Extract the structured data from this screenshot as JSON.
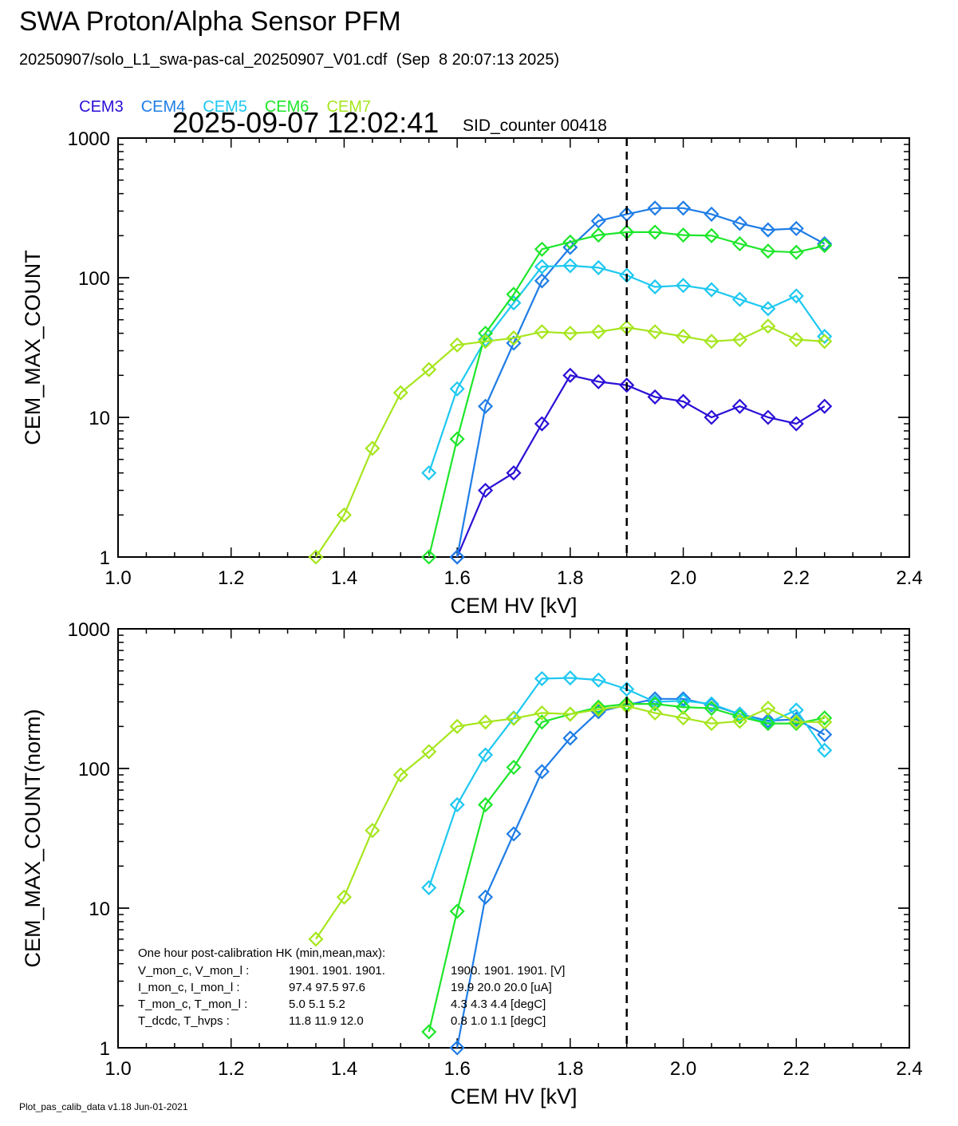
{
  "header": {
    "title": "SWA Proton/Alpha Sensor PFM",
    "file_line": "20250907/solo_L1_swa-pas-cal_20250907_V01.cdf  (Sep  8 20:07:13 2025)",
    "timestamp": "2025-09-07 12:02:41",
    "sid_counter": "SID_counter 00418"
  },
  "legend": [
    {
      "name": "CEM3",
      "color": "#2a0fd6"
    },
    {
      "name": "CEM4",
      "color": "#1f7de6"
    },
    {
      "name": "CEM5",
      "color": "#1ec8f0"
    },
    {
      "name": "CEM6",
      "color": "#1ee62a"
    },
    {
      "name": "CEM7",
      "color": "#a6e61e"
    }
  ],
  "footer": "Plot_pas_calib_data v1.18 Jun-01-2021",
  "hk_box": {
    "title": "One hour post-calibration HK (min,mean,max):",
    "rows": [
      {
        "label": "V_mon_c, V_mon_l :",
        "a": "1901.   1901.   1901.",
        "b": "1900.   1901.   1901.  [V]"
      },
      {
        "label": "I_mon_c,  I_mon_l :",
        "a": "97.4    97.5    97.6",
        "b": "19.9    20.0    20.0  [uA]"
      },
      {
        "label": "T_mon_c, T_mon_l :",
        "a": "5.0     5.1     5.2",
        "b": "4.3     4.3     4.4  [degC]"
      },
      {
        "label": "T_dcdc,     T_hvps :",
        "a": "11.8    11.9    12.0",
        "b": "0.8     1.0     1.1  [degC]"
      }
    ]
  },
  "chart_data": [
    {
      "type": "line",
      "xlabel": "CEM HV [kV]",
      "ylabel": "CEM_MAX_COUNT",
      "xlim": [
        1.0,
        2.4
      ],
      "ylim": [
        1,
        1000
      ],
      "yscale": "log",
      "xticks": [
        "1.0",
        "1.2",
        "1.4",
        "1.6",
        "1.8",
        "2.0",
        "2.2",
        "2.4"
      ],
      "yticks": [
        "1",
        "10",
        "100",
        "1000"
      ],
      "vline_x": 1.9,
      "series": [
        {
          "name": "CEM3",
          "color": "#2a0fd6",
          "x": [
            1.6,
            1.65,
            1.7,
            1.75,
            1.8,
            1.85,
            1.9,
            1.95,
            2.0,
            2.05,
            2.1,
            2.15,
            2.2,
            2.25
          ],
          "y": [
            1,
            3,
            4,
            9,
            20,
            18,
            17,
            14,
            13,
            10,
            12,
            10,
            9,
            12
          ]
        },
        {
          "name": "CEM4",
          "color": "#1f7de6",
          "x": [
            1.6,
            1.65,
            1.7,
            1.75,
            1.8,
            1.85,
            1.9,
            1.95,
            2.0,
            2.05,
            2.1,
            2.15,
            2.2,
            2.25
          ],
          "y": [
            1,
            12,
            34,
            95,
            165,
            255,
            285,
            315,
            315,
            285,
            245,
            220,
            225,
            175
          ]
        },
        {
          "name": "CEM5",
          "color": "#1ec8f0",
          "x": [
            1.55,
            1.6,
            1.65,
            1.7,
            1.75,
            1.8,
            1.85,
            1.9,
            1.95,
            2.0,
            2.05,
            2.1,
            2.15,
            2.2,
            2.25
          ],
          "y": [
            4,
            16,
            36,
            66,
            120,
            122,
            118,
            104,
            86,
            88,
            82,
            70,
            60,
            74,
            38
          ]
        },
        {
          "name": "CEM6",
          "color": "#1ee62a",
          "x": [
            1.55,
            1.6,
            1.65,
            1.7,
            1.75,
            1.8,
            1.85,
            1.9,
            1.95,
            2.0,
            2.05,
            2.1,
            2.15,
            2.2,
            2.25
          ],
          "y": [
            1,
            7,
            40,
            76,
            160,
            180,
            202,
            212,
            212,
            202,
            200,
            175,
            155,
            152,
            170
          ]
        },
        {
          "name": "CEM7",
          "color": "#a6e61e",
          "x": [
            1.35,
            1.4,
            1.45,
            1.5,
            1.55,
            1.6,
            1.65,
            1.7,
            1.75,
            1.8,
            1.85,
            1.9,
            1.95,
            2.0,
            2.05,
            2.1,
            2.15,
            2.2,
            2.25
          ],
          "y": [
            1,
            2,
            6,
            15,
            22,
            33,
            35,
            37,
            41,
            40,
            41,
            44,
            41,
            38,
            35,
            36,
            45,
            36,
            35
          ]
        }
      ]
    },
    {
      "type": "line",
      "xlabel": "CEM HV [kV]",
      "ylabel": "CEM_MAX_COUNT(norm)",
      "xlim": [
        1.0,
        2.4
      ],
      "ylim": [
        1,
        1000
      ],
      "yscale": "log",
      "xticks": [
        "1.0",
        "1.2",
        "1.4",
        "1.6",
        "1.8",
        "2.0",
        "2.2",
        "2.4"
      ],
      "yticks": [
        "1",
        "10",
        "100",
        "1000"
      ],
      "vline_x": 1.9,
      "series": [
        {
          "name": "CEM4",
          "color": "#1f7de6",
          "x": [
            1.6,
            1.65,
            1.7,
            1.75,
            1.8,
            1.85,
            1.9,
            1.95,
            2.0,
            2.05,
            2.1,
            2.15,
            2.2,
            2.25
          ],
          "y": [
            1,
            12,
            34,
            95,
            165,
            255,
            285,
            315,
            315,
            285,
            245,
            220,
            225,
            175
          ]
        },
        {
          "name": "CEM5",
          "color": "#1ec8f0",
          "x": [
            1.55,
            1.6,
            1.65,
            1.7,
            1.75,
            1.8,
            1.85,
            1.9,
            1.95,
            2.0,
            2.05,
            2.1,
            2.15,
            2.2,
            2.25
          ],
          "y": [
            14,
            55,
            125,
            230,
            440,
            445,
            430,
            370,
            300,
            305,
            290,
            245,
            212,
            262,
            135
          ]
        },
        {
          "name": "CEM6",
          "color": "#1ee62a",
          "x": [
            1.55,
            1.6,
            1.65,
            1.7,
            1.75,
            1.8,
            1.85,
            1.9,
            1.95,
            2.0,
            2.05,
            2.1,
            2.15,
            2.2,
            2.25
          ],
          "y": [
            1.3,
            9.5,
            55,
            102,
            215,
            245,
            275,
            290,
            290,
            275,
            270,
            235,
            210,
            210,
            230
          ]
        },
        {
          "name": "CEM7",
          "color": "#a6e61e",
          "x": [
            1.35,
            1.4,
            1.45,
            1.5,
            1.55,
            1.6,
            1.65,
            1.7,
            1.75,
            1.8,
            1.85,
            1.9,
            1.95,
            2.0,
            2.05,
            2.1,
            2.15,
            2.2,
            2.25
          ],
          "y": [
            6,
            12,
            36,
            90,
            132,
            200,
            215,
            228,
            250,
            245,
            265,
            280,
            250,
            230,
            210,
            218,
            270,
            215,
            215
          ]
        }
      ]
    }
  ]
}
